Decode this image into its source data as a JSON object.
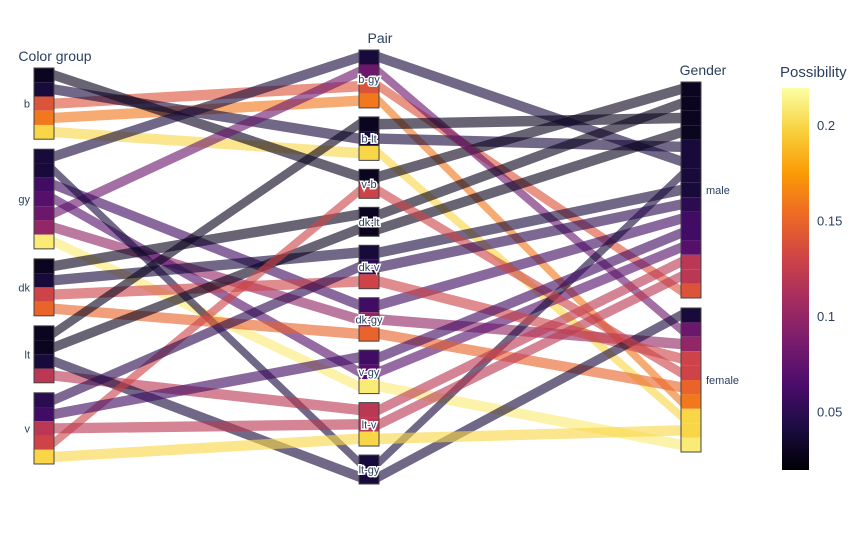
{
  "chart_data": {
    "type": "parallel-categories",
    "dimensions": [
      {
        "label": "Color group",
        "categories": [
          "b",
          "gy",
          "dk",
          "lt",
          "v"
        ]
      },
      {
        "label": "Pair",
        "categories": [
          "b-gy",
          "b-lt",
          "v-b",
          "dk-lt",
          "dk-v",
          "dk-gy",
          "v-gy",
          "lt-v",
          "lt-gy"
        ]
      },
      {
        "label": "Gender",
        "categories": [
          "male",
          "female"
        ]
      }
    ],
    "colorbar": {
      "title": "Possibility",
      "range": [
        0.02,
        0.22
      ],
      "ticks": [
        0.05,
        0.1,
        0.15,
        0.2
      ],
      "tick_labels": [
        "0.05",
        "0.1",
        "0.15",
        "0.2"
      ],
      "colorscale": [
        "#000004",
        "#1b0c41",
        "#4a0c6b",
        "#781c6d",
        "#a52c60",
        "#cf4446",
        "#ed6925",
        "#fb9b06",
        "#f7d13d",
        "#fcffa4"
      ]
    },
    "records": [
      {
        "color_group": "b",
        "pair": "b-gy",
        "gender": "male",
        "possibility": 0.14
      },
      {
        "color_group": "b",
        "pair": "b-gy",
        "gender": "female",
        "possibility": 0.16
      },
      {
        "color_group": "b",
        "pair": "b-lt",
        "gender": "male",
        "possibility": 0.04
      },
      {
        "color_group": "b",
        "pair": "b-lt",
        "gender": "female",
        "possibility": 0.2
      },
      {
        "color_group": "b",
        "pair": "v-b",
        "gender": "male",
        "possibility": 0.03
      },
      {
        "color_group": "gy",
        "pair": "b-gy",
        "gender": "male",
        "possibility": 0.04
      },
      {
        "color_group": "gy",
        "pair": "b-gy",
        "gender": "female",
        "possibility": 0.08
      },
      {
        "color_group": "gy",
        "pair": "dk-gy",
        "gender": "male",
        "possibility": 0.06
      },
      {
        "color_group": "gy",
        "pair": "dk-gy",
        "gender": "female",
        "possibility": 0.1
      },
      {
        "color_group": "gy",
        "pair": "v-gy",
        "gender": "male",
        "possibility": 0.07
      },
      {
        "color_group": "gy",
        "pair": "v-gy",
        "gender": "female",
        "possibility": 0.21
      },
      {
        "color_group": "gy",
        "pair": "lt-gy",
        "gender": "male",
        "possibility": 0.04
      },
      {
        "color_group": "dk",
        "pair": "dk-lt",
        "gender": "male",
        "possibility": 0.03
      },
      {
        "color_group": "dk",
        "pair": "dk-v",
        "gender": "male",
        "possibility": 0.04
      },
      {
        "color_group": "dk",
        "pair": "dk-v",
        "gender": "female",
        "possibility": 0.13
      },
      {
        "color_group": "dk",
        "pair": "dk-gy",
        "gender": "female",
        "possibility": 0.15
      },
      {
        "color_group": "lt",
        "pair": "b-lt",
        "gender": "male",
        "possibility": 0.03
      },
      {
        "color_group": "lt",
        "pair": "dk-lt",
        "gender": "male",
        "possibility": 0.03
      },
      {
        "color_group": "lt",
        "pair": "lt-v",
        "gender": "male",
        "possibility": 0.12
      },
      {
        "color_group": "lt",
        "pair": "lt-gy",
        "gender": "female",
        "possibility": 0.04
      },
      {
        "color_group": "v",
        "pair": "v-b",
        "gender": "female",
        "possibility": 0.13
      },
      {
        "color_group": "v",
        "pair": "dk-v",
        "gender": "male",
        "possibility": 0.05
      },
      {
        "color_group": "v",
        "pair": "v-gy",
        "gender": "male",
        "possibility": 0.06
      },
      {
        "color_group": "v",
        "pair": "lt-v",
        "gender": "male",
        "possibility": 0.12
      },
      {
        "color_group": "v",
        "pair": "lt-v",
        "gender": "female",
        "possibility": 0.2
      }
    ]
  }
}
